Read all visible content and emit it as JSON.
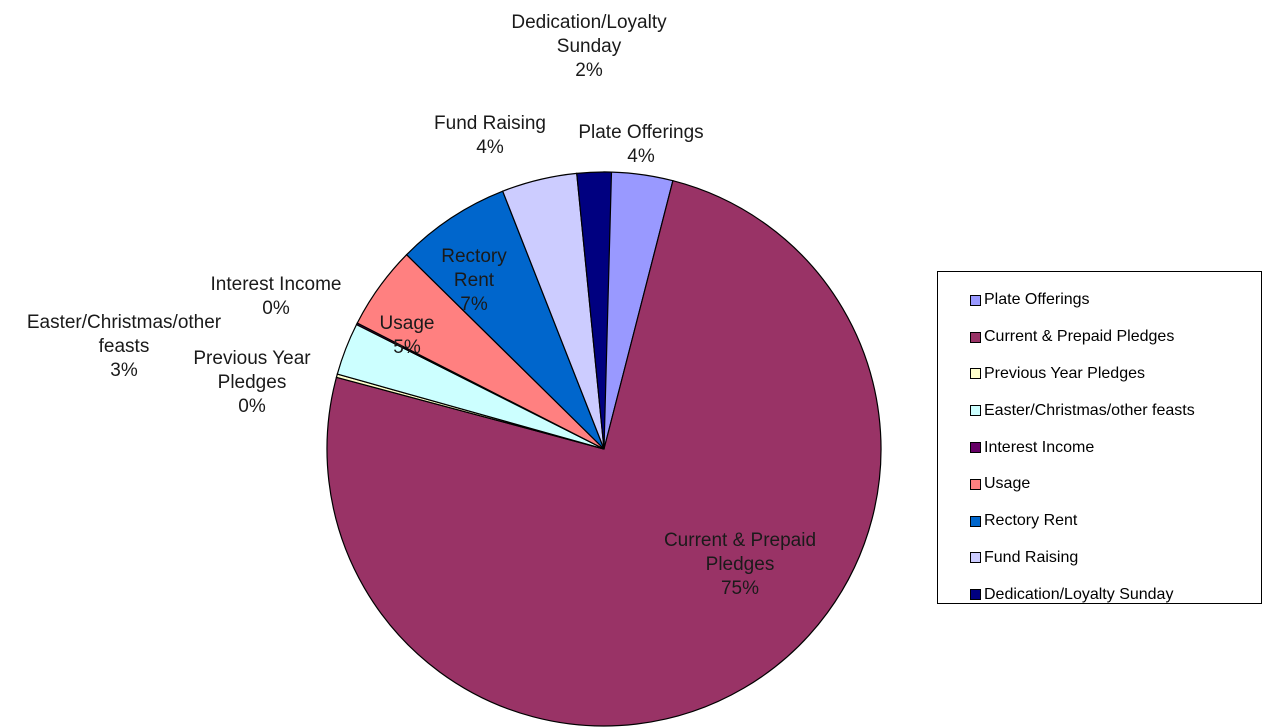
{
  "chart_data": {
    "type": "pie",
    "title": "",
    "slices": [
      {
        "name": "Plate Offerings",
        "value": 4,
        "label": "4%",
        "color": "#9999FF"
      },
      {
        "name": "Current & Prepaid Pledges",
        "value": 75,
        "label": "75%",
        "color": "#993366"
      },
      {
        "name": "Previous Year Pledges",
        "value": 0,
        "label": "0%",
        "color": "#FFFFCC"
      },
      {
        "name": "Easter/Christmas/other feasts",
        "value": 3,
        "label": "3%",
        "color": "#CCFFFF"
      },
      {
        "name": "Interest Income",
        "value": 0,
        "label": "0%",
        "color": "#660066"
      },
      {
        "name": "Usage",
        "value": 5,
        "label": "5%",
        "color": "#FF8080"
      },
      {
        "name": "Rectory Rent",
        "value": 7,
        "label": "7%",
        "color": "#0066CC"
      },
      {
        "name": "Fund Raising",
        "value": 4,
        "label": "4%",
        "color": "#CCCCFF"
      },
      {
        "name": "Dedication/Loyalty Sunday",
        "value": 2,
        "label": "2%",
        "color": "#000080"
      }
    ],
    "data_labels": [
      {
        "lines": [
          "Plate Offerings",
          "4%"
        ]
      },
      {
        "lines": [
          "Current & Prepaid",
          "Pledges",
          "75%"
        ]
      },
      {
        "lines": [
          "Previous Year",
          "Pledges",
          "0%"
        ]
      },
      {
        "lines": [
          "Easter/Christmas/other",
          "feasts",
          "3%"
        ]
      },
      {
        "lines": [
          "Interest Income",
          "0%"
        ]
      },
      {
        "lines": [
          "Usage",
          "5%"
        ]
      },
      {
        "lines": [
          "Rectory",
          "Rent",
          "7%"
        ]
      },
      {
        "lines": [
          "Fund Raising",
          "4%"
        ]
      },
      {
        "lines": [
          "Dedication/Loyalty",
          "Sunday",
          "2%"
        ]
      }
    ],
    "legend": {
      "position": "right",
      "entries": [
        "Plate Offerings",
        "Current & Prepaid Pledges",
        "Previous Year Pledges",
        "Easter/Christmas/other feasts",
        "Interest Income",
        "Usage",
        "Rectory Rent",
        "Fund Raising",
        "Dedication/Loyalty Sunday"
      ]
    }
  }
}
